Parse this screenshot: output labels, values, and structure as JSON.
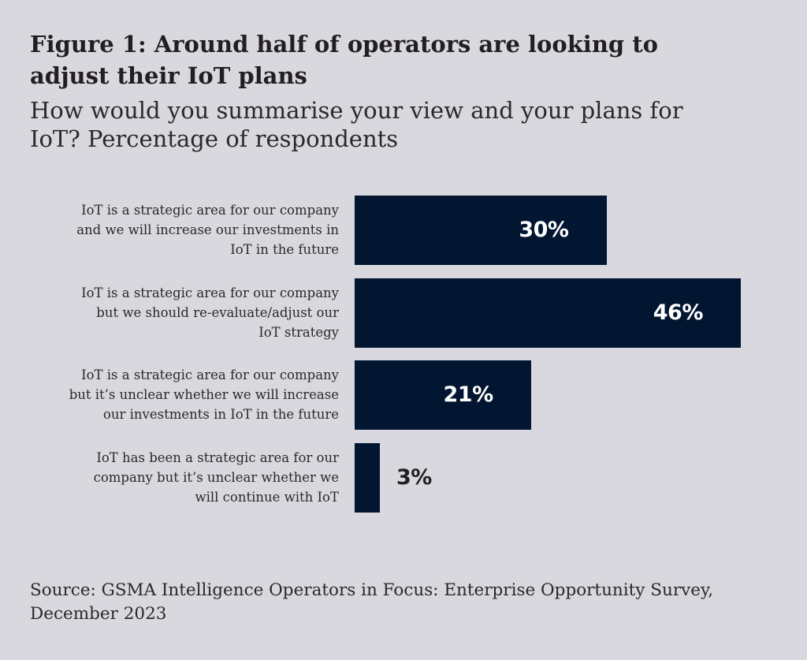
{
  "chart_data": {
    "type": "bar",
    "orientation": "horizontal",
    "title_lines": [
      "Figure 1: Around half of operators are looking to",
      "adjust their IoT plans"
    ],
    "subtitle_lines": [
      "How would you summarise your view and your plans for",
      "IoT? Percentage of respondents"
    ],
    "categories": [
      [
        "IoT is a strategic area for our company",
        "and we will increase our investments in",
        "IoT in the future"
      ],
      [
        "IoT is a strategic area for our company",
        "but we should re-evaluate/adjust our",
        "IoT strategy"
      ],
      [
        "IoT is a strategic area for our company",
        "but it’s unclear whether we will increase",
        "our investments in IoT in the future"
      ],
      [
        "IoT has been a strategic area for our",
        "company but it’s unclear whether we",
        "will continue with IoT"
      ]
    ],
    "values": [
      30,
      46,
      21,
      3
    ],
    "data_labels": [
      "30%",
      "46%",
      "21%",
      "3%"
    ],
    "unit": "%",
    "xlim": [
      0,
      100
    ],
    "grid": false,
    "bar_color": "#021631",
    "background": "#d8d8de",
    "source_lines": [
      "Source: GSMA Intelligence Operators in Focus: Enterprise Opportunity Survey,",
      "December 2023"
    ]
  }
}
